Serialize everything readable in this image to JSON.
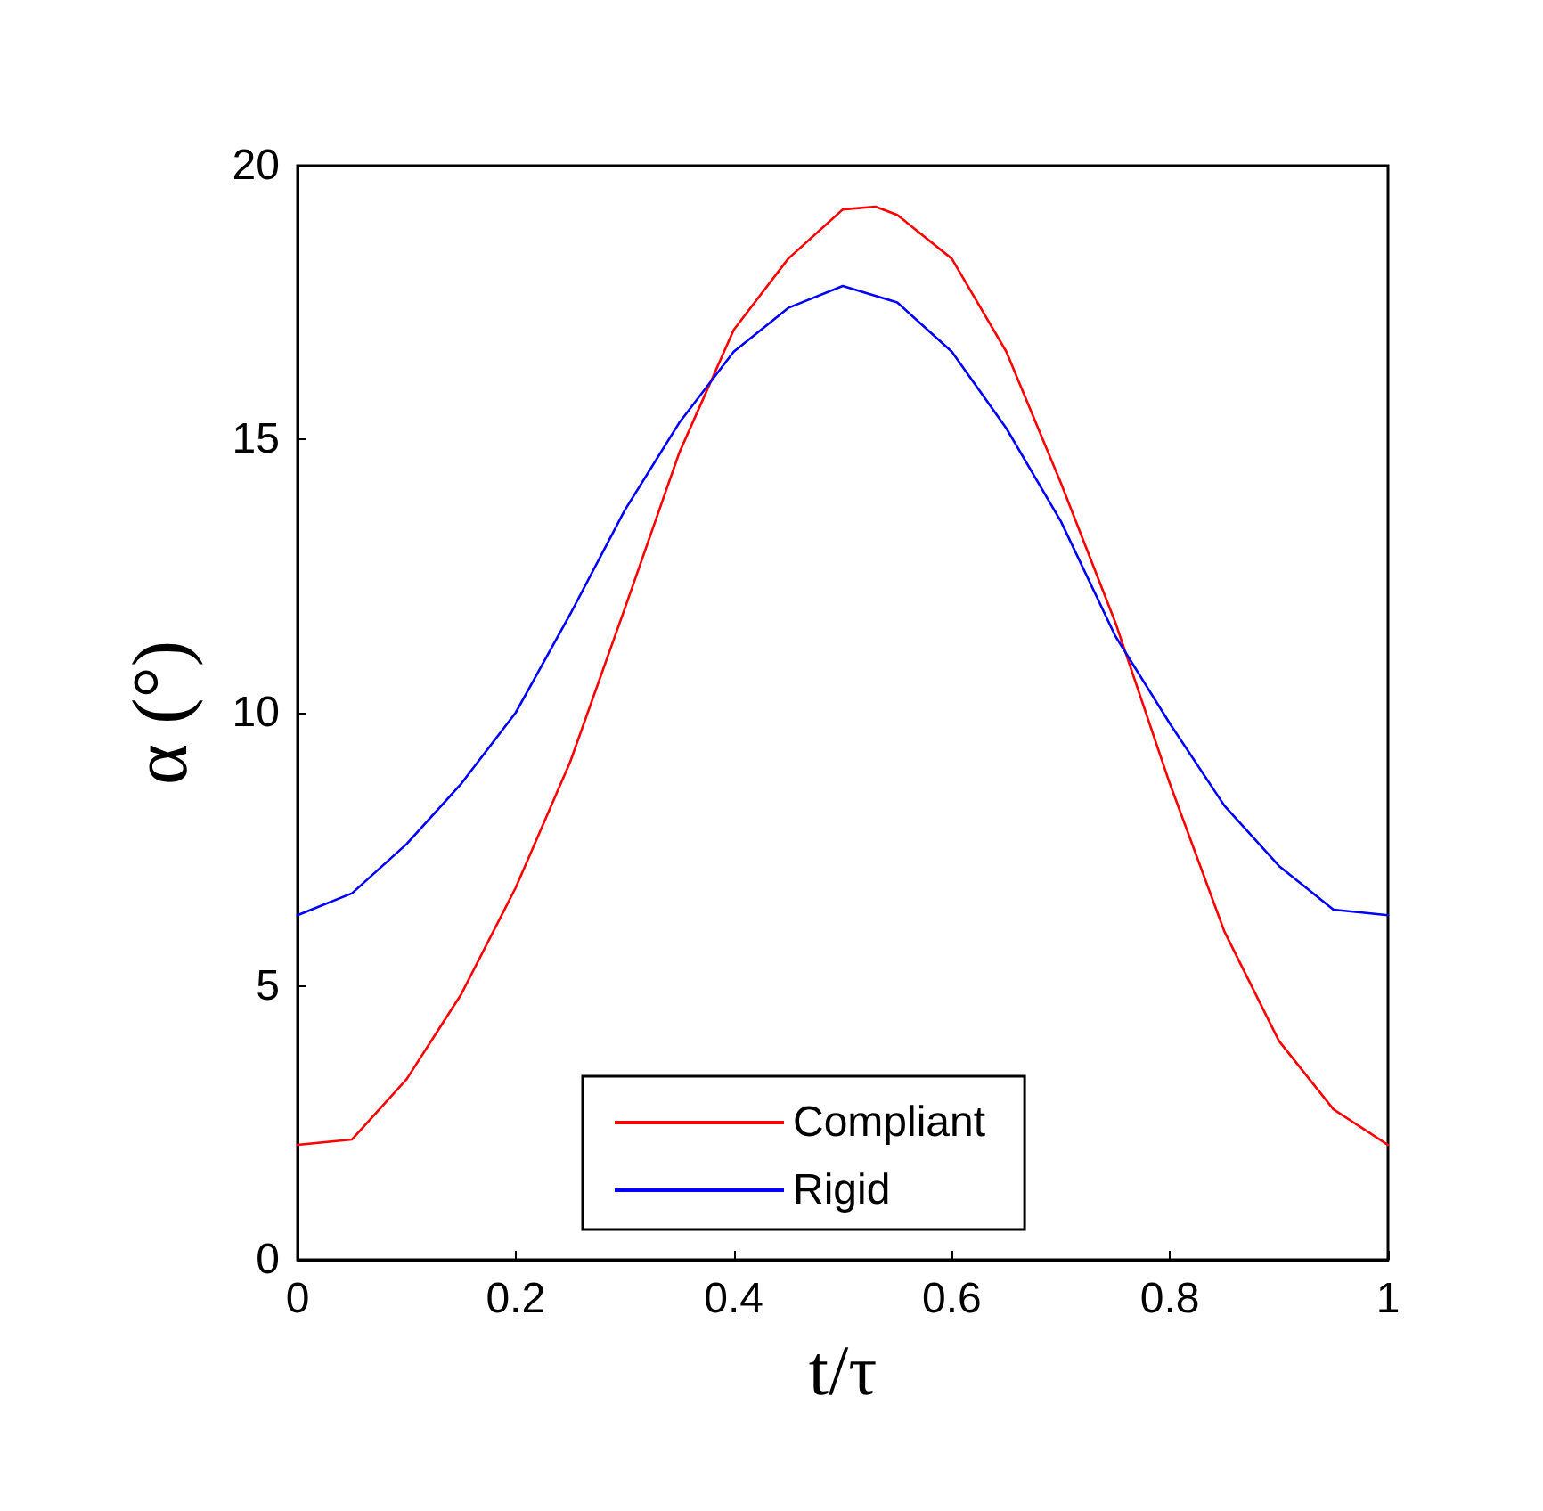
{
  "chart_data": {
    "type": "line",
    "xlabel": "t/τ",
    "ylabel": "α (°)",
    "xlim": [
      0,
      1
    ],
    "xticks": [
      0,
      0.2,
      0.4,
      0.6,
      0.8,
      1
    ],
    "ylim": [
      0,
      20
    ],
    "yticks": [
      0,
      5,
      10,
      15,
      20
    ],
    "grid": false,
    "legend": "bottom",
    "marker": "none",
    "line_style": "solid",
    "series": [
      {
        "name": "Compliant",
        "color": "#ff0000",
        "x": [
          0,
          0.05,
          0.1,
          0.15,
          0.2,
          0.25,
          0.3,
          0.35,
          0.4,
          0.45,
          0.5,
          0.53,
          0.55,
          0.6,
          0.65,
          0.7,
          0.75,
          0.8,
          0.85,
          0.9,
          0.95,
          1
        ],
        "values": [
          2.1,
          2.2,
          3.3,
          4.85,
          6.8,
          9.1,
          11.9,
          14.75,
          17.0,
          18.3,
          19.2,
          19.25,
          19.1,
          18.3,
          16.6,
          14.2,
          11.65,
          8.7,
          6.0,
          4.0,
          2.75,
          2.1
        ]
      },
      {
        "name": "Rigid",
        "color": "#0000ff",
        "x": [
          0,
          0.05,
          0.1,
          0.15,
          0.2,
          0.25,
          0.3,
          0.35,
          0.4,
          0.45,
          0.5,
          0.55,
          0.6,
          0.65,
          0.7,
          0.75,
          0.8,
          0.85,
          0.9,
          0.95,
          1
        ],
        "values": [
          6.3,
          6.7,
          7.6,
          8.7,
          10.0,
          11.8,
          13.7,
          15.3,
          16.6,
          17.4,
          17.8,
          17.5,
          16.6,
          15.2,
          13.5,
          11.4,
          9.8,
          8.3,
          7.2,
          6.4,
          6.3
        ]
      }
    ]
  }
}
